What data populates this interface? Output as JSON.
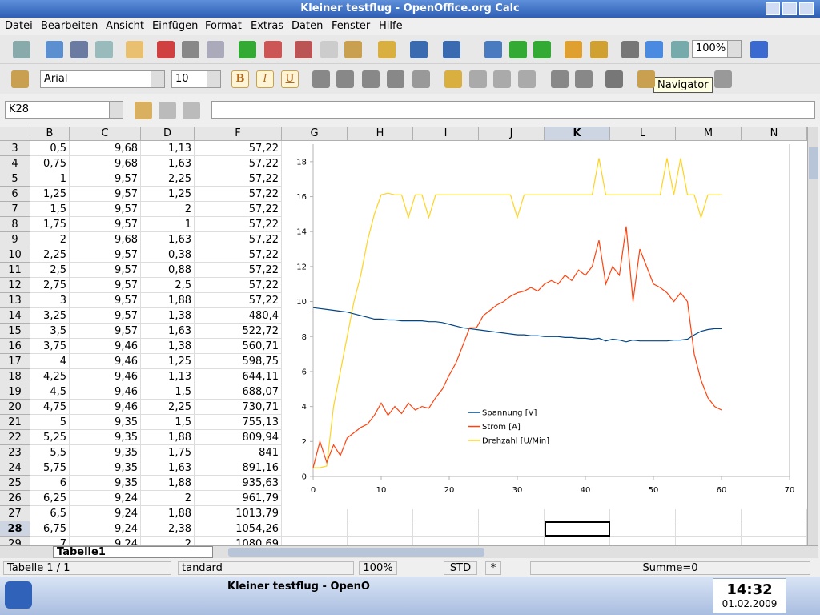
{
  "window": {
    "title": "Kleiner testflug - OpenOffice.org Calc"
  },
  "menu": [
    "Datei",
    "Bearbeiten",
    "Ansicht",
    "Einfügen",
    "Format",
    "Extras",
    "Daten",
    "Fenster",
    "Hilfe"
  ],
  "toolbar": {
    "zoom": "100%",
    "font": "Arial",
    "size": "10",
    "format_buttons": [
      "B",
      "I",
      "U"
    ],
    "tooltip": "Navigator"
  },
  "formula_bar": {
    "cell_ref": "K28"
  },
  "sheet": {
    "columns": [
      "B",
      "C",
      "D",
      "F",
      "G",
      "H",
      "I",
      "J",
      "K",
      "L",
      "M",
      "N"
    ],
    "rows": [
      [
        "3",
        "0,5",
        "9,68",
        "1,13",
        "57,22"
      ],
      [
        "4",
        "0,75",
        "9,68",
        "1,63",
        "57,22"
      ],
      [
        "5",
        "1",
        "9,57",
        "2,25",
        "57,22"
      ],
      [
        "6",
        "1,25",
        "9,57",
        "1,25",
        "57,22"
      ],
      [
        "7",
        "1,5",
        "9,57",
        "2",
        "57,22"
      ],
      [
        "8",
        "1,75",
        "9,57",
        "1",
        "57,22"
      ],
      [
        "9",
        "2",
        "9,68",
        "1,63",
        "57,22"
      ],
      [
        "10",
        "2,25",
        "9,57",
        "0,38",
        "57,22"
      ],
      [
        "11",
        "2,5",
        "9,57",
        "0,88",
        "57,22"
      ],
      [
        "12",
        "2,75",
        "9,57",
        "2,5",
        "57,22"
      ],
      [
        "13",
        "3",
        "9,57",
        "1,88",
        "57,22"
      ],
      [
        "14",
        "3,25",
        "9,57",
        "1,38",
        "480,4"
      ],
      [
        "15",
        "3,5",
        "9,57",
        "1,63",
        "522,72"
      ],
      [
        "16",
        "3,75",
        "9,46",
        "1,38",
        "560,71"
      ],
      [
        "17",
        "4",
        "9,46",
        "1,25",
        "598,75"
      ],
      [
        "18",
        "4,25",
        "9,46",
        "1,13",
        "644,11"
      ],
      [
        "19",
        "4,5",
        "9,46",
        "1,5",
        "688,07"
      ],
      [
        "20",
        "4,75",
        "9,46",
        "2,25",
        "730,71"
      ],
      [
        "21",
        "5",
        "9,35",
        "1,5",
        "755,13"
      ],
      [
        "22",
        "5,25",
        "9,35",
        "1,88",
        "809,94"
      ],
      [
        "23",
        "5,5",
        "9,35",
        "1,75",
        "841"
      ],
      [
        "24",
        "5,75",
        "9,35",
        "1,63",
        "891,16"
      ],
      [
        "25",
        "6",
        "9,35",
        "1,88",
        "935,63"
      ],
      [
        "26",
        "6,25",
        "9,24",
        "2",
        "961,79"
      ],
      [
        "27",
        "6,5",
        "9,24",
        "1,88",
        "1013,79"
      ],
      [
        "28",
        "6,75",
        "9,24",
        "2,38",
        "1054,26"
      ],
      [
        "29",
        "7",
        "9,24",
        "2",
        "1080,69"
      ]
    ]
  },
  "sheet_tab": "Tabelle1",
  "status": [
    "Tabelle 1 / 1",
    "tandard",
    "100%",
    "STD",
    "*",
    "Summe=0"
  ],
  "taskbar": {
    "window": "Kleiner testflug - OpenO",
    "time": "14:32",
    "date": "01.02.2009"
  },
  "chart_data": {
    "type": "line",
    "x": [
      0,
      1,
      2,
      3,
      4,
      5,
      6,
      7,
      8,
      9,
      10,
      11,
      12,
      13,
      14,
      15,
      16,
      17,
      18,
      19,
      20,
      21,
      22,
      23,
      24,
      25,
      26,
      27,
      28,
      29,
      30,
      31,
      32,
      33,
      34,
      35,
      36,
      37,
      38,
      39,
      40,
      41,
      42,
      43,
      44,
      45,
      46,
      47,
      48,
      49,
      50,
      51,
      52,
      53,
      54,
      55,
      56,
      57,
      58,
      59,
      60
    ],
    "series": [
      {
        "name": "Spannung [V]",
        "color": "#004586",
        "values": [
          9.65,
          9.6,
          9.55,
          9.5,
          9.45,
          9.4,
          9.3,
          9.2,
          9.1,
          9.0,
          9.0,
          8.95,
          8.95,
          8.9,
          8.9,
          8.9,
          8.9,
          8.85,
          8.85,
          8.8,
          8.7,
          8.6,
          8.5,
          8.45,
          8.4,
          8.35,
          8.3,
          8.25,
          8.2,
          8.15,
          8.1,
          8.1,
          8.05,
          8.05,
          8.0,
          8.0,
          8.0,
          7.95,
          7.95,
          7.9,
          7.9,
          7.85,
          7.9,
          7.75,
          7.85,
          7.8,
          7.7,
          7.8,
          7.75,
          7.75,
          7.75,
          7.75,
          7.75,
          7.8,
          7.8,
          7.85,
          8.1,
          8.3,
          8.4,
          8.45,
          8.45
        ]
      },
      {
        "name": "Strom [A]",
        "color": "#ff420e",
        "values": [
          0.5,
          2,
          0.8,
          1.8,
          1.2,
          2.2,
          2.5,
          2.8,
          3.0,
          3.5,
          4.2,
          3.5,
          4.0,
          3.6,
          4.2,
          3.8,
          4.0,
          3.9,
          4.5,
          5.0,
          5.8,
          6.5,
          7.5,
          8.5,
          8.5,
          9.2,
          9.5,
          9.8,
          10.0,
          10.3,
          10.5,
          10.6,
          10.8,
          10.6,
          11.0,
          11.2,
          11.0,
          11.5,
          11.2,
          11.8,
          11.5,
          12.0,
          13.5,
          11.0,
          12.0,
          11.5,
          14.3,
          10.0,
          13.0,
          12.0,
          11.0,
          10.8,
          10.5,
          10.0,
          10.5,
          10.0,
          7.0,
          5.5,
          4.5,
          4.0,
          3.8
        ]
      },
      {
        "name": "Drehzahl [U/Min]",
        "color": "#ffd320",
        "values": [
          0.5,
          0.5,
          0.6,
          4,
          6,
          8,
          10,
          11.5,
          13.5,
          15,
          16.1,
          16.2,
          16.1,
          16.1,
          14.8,
          16.1,
          16.1,
          14.8,
          16.1,
          16.1,
          16.1,
          16.1,
          16.1,
          16.1,
          16.1,
          16.1,
          16.1,
          16.1,
          16.1,
          16.1,
          14.8,
          16.1,
          16.1,
          16.1,
          16.1,
          16.1,
          16.1,
          16.1,
          16.1,
          16.1,
          16.1,
          16.1,
          18.2,
          16.1,
          16.1,
          16.1,
          16.1,
          16.1,
          16.1,
          16.1,
          16.1,
          16.1,
          18.2,
          16.1,
          18.2,
          16.1,
          16.1,
          14.8,
          16.1,
          16.1,
          16.1
        ]
      }
    ],
    "xlim": [
      0,
      70
    ],
    "xticks": [
      0,
      10,
      20,
      30,
      40,
      50,
      60,
      70
    ],
    "ylim": [
      0,
      19
    ],
    "yticks": [
      0,
      2,
      4,
      6,
      8,
      10,
      12,
      14,
      16,
      18
    ],
    "grid": false
  }
}
